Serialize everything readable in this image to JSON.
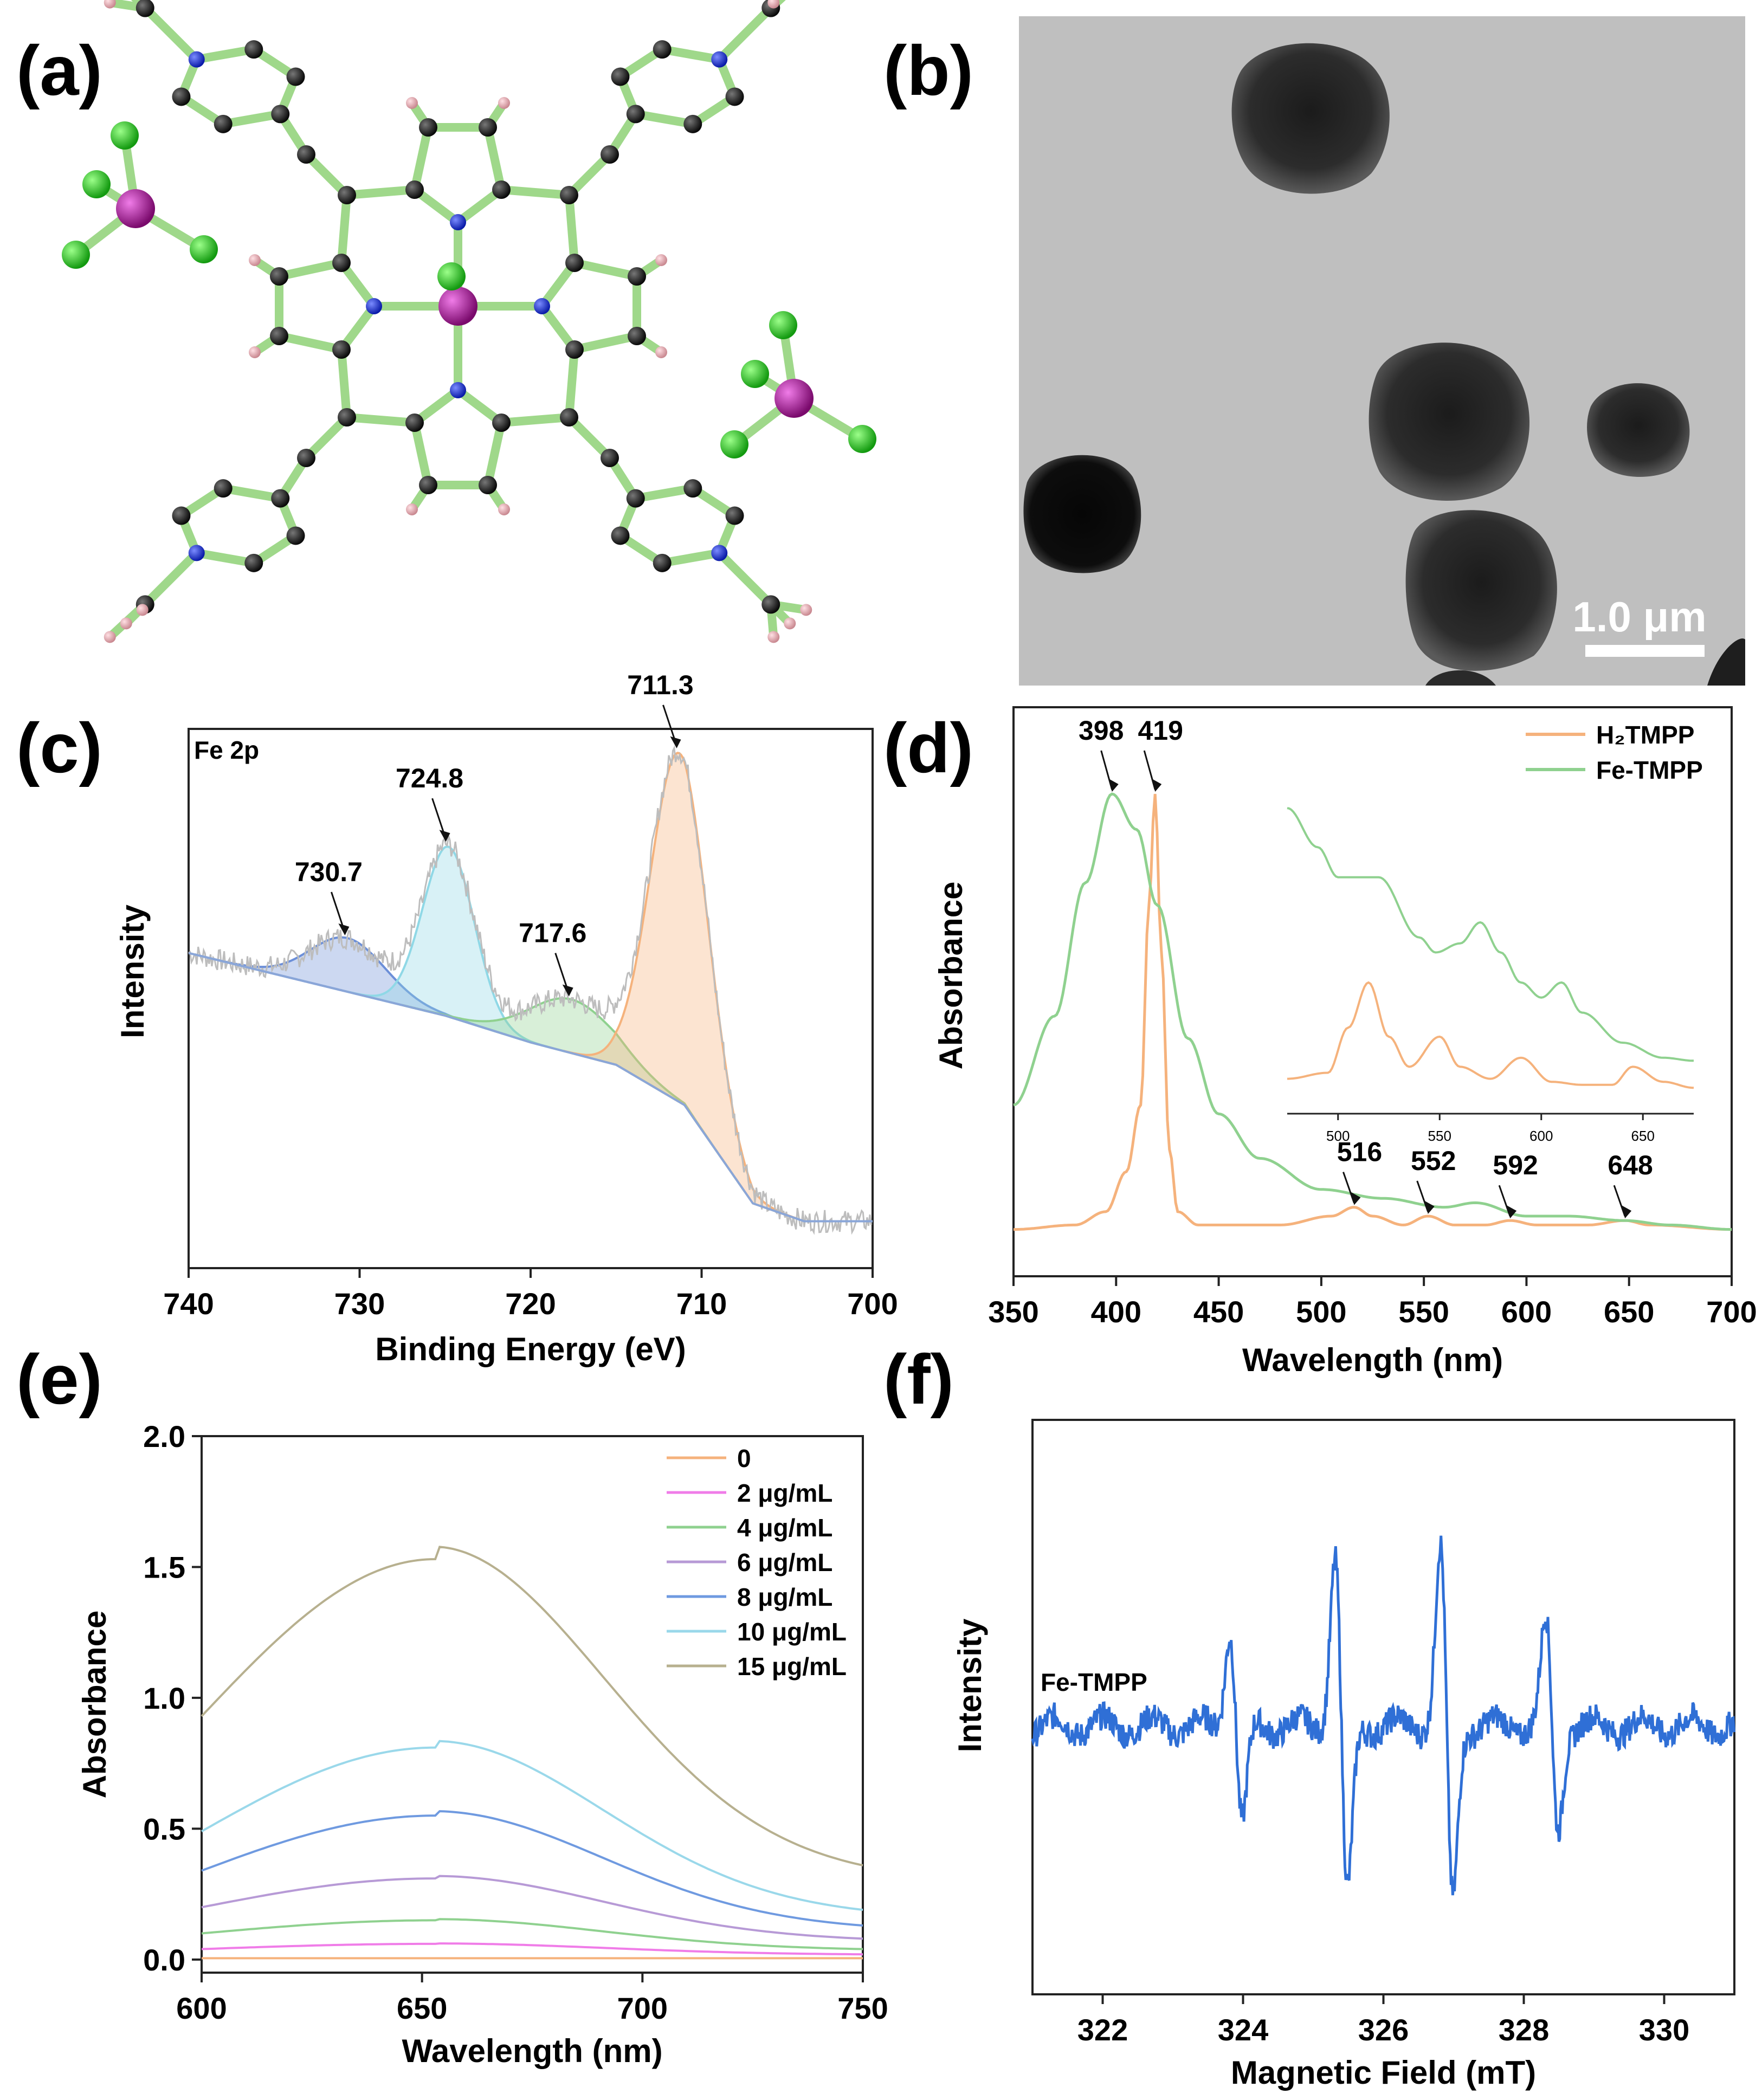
{
  "panels": {
    "a": {
      "label": "(a)"
    },
    "b": {
      "label": "(b)",
      "scale_bar": "1.0 μm"
    },
    "c": {
      "label": "(c)"
    },
    "d": {
      "label": "(d)"
    },
    "e": {
      "label": "(e)"
    },
    "f": {
      "label": "(f)"
    }
  },
  "colors": {
    "orange": "#f5b27c",
    "green": "#8fd18f",
    "blue_epr": "#2f6fd6",
    "molecule_bond": "#9fd88a",
    "carbon": "#111111",
    "nitrogen": "#1a2fd6",
    "iron": "#b0129e",
    "chlorine": "#22c41e",
    "hydrogen": "#e7a9b0"
  },
  "chart_data": [
    {
      "panel": "c",
      "type": "line",
      "title": "Fe 2p",
      "xlabel": "Binding Energy (eV)",
      "ylabel": "Intensity",
      "xlim": [
        740,
        700
      ],
      "xticks": [
        "740",
        "730",
        "720",
        "710",
        "700"
      ],
      "annotations": [
        {
          "text": "730.7",
          "x": 730.7
        },
        {
          "text": "724.8",
          "x": 724.8
        },
        {
          "text": "717.6",
          "x": 717.6
        },
        {
          "text": "711.3",
          "x": 711.3
        }
      ],
      "peaks": [
        {
          "center": 730.7,
          "height": 0.12,
          "width": 2.2,
          "color": "#6c8fd8"
        },
        {
          "center": 724.8,
          "height": 0.38,
          "width": 1.5,
          "color": "#8fd8e6"
        },
        {
          "center": 717.6,
          "height": 0.12,
          "width": 2.5,
          "color": "#8fd18f"
        },
        {
          "center": 711.3,
          "height": 0.78,
          "width": 1.7,
          "color": "#f5b27c"
        }
      ],
      "background": {
        "x": [
          740,
          725,
          720,
          715,
          711,
          707,
          704,
          700
        ],
        "y": [
          0.62,
          0.48,
          0.42,
          0.37,
          0.28,
          0.06,
          0.02,
          0.02
        ]
      }
    },
    {
      "panel": "d",
      "type": "line",
      "xlabel": "Wavelength (nm)",
      "ylabel": "Absorbance",
      "xlim": [
        350,
        700
      ],
      "xticks": [
        "350",
        "400",
        "450",
        "500",
        "550",
        "600",
        "650",
        "700"
      ],
      "series": [
        {
          "name": "H2TMPP",
          "color": "#f5b27c",
          "x": [
            350,
            380,
            395,
            405,
            412,
            416,
            419,
            422,
            426,
            430,
            440,
            480,
            505,
            516,
            525,
            540,
            552,
            565,
            580,
            592,
            605,
            630,
            648,
            660,
            700
          ],
          "y": [
            0.02,
            0.03,
            0.06,
            0.15,
            0.3,
            0.75,
            1.0,
            0.65,
            0.2,
            0.06,
            0.03,
            0.03,
            0.05,
            0.07,
            0.05,
            0.03,
            0.05,
            0.03,
            0.03,
            0.04,
            0.03,
            0.03,
            0.04,
            0.03,
            0.02
          ]
        },
        {
          "name": "Fe-TMPP",
          "color": "#8fd18f",
          "x": [
            350,
            370,
            385,
            398,
            410,
            420,
            435,
            450,
            470,
            500,
            530,
            560,
            575,
            600,
            620,
            648,
            670,
            700
          ],
          "y": [
            0.3,
            0.5,
            0.8,
            1.0,
            0.92,
            0.75,
            0.45,
            0.28,
            0.18,
            0.11,
            0.09,
            0.07,
            0.08,
            0.05,
            0.05,
            0.04,
            0.03,
            0.02
          ]
        }
      ],
      "annotations": [
        {
          "text": "398",
          "x": 398
        },
        {
          "text": "419",
          "x": 419
        },
        {
          "text": "516",
          "x": 516
        },
        {
          "text": "552",
          "x": 552
        },
        {
          "text": "592",
          "x": 592
        },
        {
          "text": "648",
          "x": 648
        }
      ],
      "legend": {
        "position": "top-right",
        "labels": [
          "H₂TMPP",
          "Fe-TMPP"
        ]
      },
      "inset": {
        "xlim": [
          475,
          675
        ],
        "xticks": [
          "500",
          "550",
          "600",
          "650"
        ],
        "series": [
          {
            "name": "Fe-TMPP",
            "color": "#8fd18f",
            "x": [
              475,
              490,
              500,
              520,
              540,
              548,
              560,
              570,
              580,
              590,
              600,
              610,
              620,
              640,
              660,
              675
            ],
            "y": [
              0.98,
              0.85,
              0.75,
              0.75,
              0.55,
              0.5,
              0.53,
              0.6,
              0.5,
              0.4,
              0.35,
              0.4,
              0.3,
              0.2,
              0.15,
              0.14
            ]
          },
          {
            "name": "H2TMPP",
            "color": "#f5b27c",
            "x": [
              475,
              495,
              505,
              515,
              525,
              535,
              550,
              560,
              575,
              590,
              605,
              620,
              635,
              645,
              660,
              675
            ],
            "y": [
              0.08,
              0.1,
              0.25,
              0.4,
              0.22,
              0.12,
              0.22,
              0.12,
              0.08,
              0.15,
              0.07,
              0.06,
              0.06,
              0.12,
              0.07,
              0.05
            ]
          }
        ]
      }
    },
    {
      "panel": "e",
      "type": "line",
      "xlabel": "Wavelength (nm)",
      "ylabel": "Absorbance",
      "xlim": [
        600,
        750
      ],
      "ylim": [
        -0.05,
        2.0
      ],
      "xticks": [
        "600",
        "650",
        "700",
        "750"
      ],
      "yticks": [
        "0.0",
        "0.5",
        "1.0",
        "1.5",
        "2.0"
      ],
      "series": [
        {
          "name": "0",
          "color": "#f5b27c",
          "peak": 0.005,
          "y600": 0.005,
          "y750": 0.005
        },
        {
          "name": "2 μg/mL",
          "color": "#f07ce8",
          "peak": 0.06,
          "y600": 0.04,
          "y750": 0.02
        },
        {
          "name": "4 μg/mL",
          "color": "#8fd18f",
          "peak": 0.15,
          "y600": 0.1,
          "y750": 0.04
        },
        {
          "name": "6 μg/mL",
          "color": "#b79ad6",
          "peak": 0.31,
          "y600": 0.2,
          "y750": 0.08
        },
        {
          "name": "8 μg/mL",
          "color": "#6f9ae0",
          "peak": 0.55,
          "y600": 0.34,
          "y750": 0.13
        },
        {
          "name": "10 μg/mL",
          "color": "#9ad8ea",
          "peak": 0.81,
          "y600": 0.49,
          "y750": 0.19
        },
        {
          "name": "15 μg/mL",
          "color": "#b7b08f",
          "peak": 1.53,
          "y600": 0.93,
          "y750": 0.36
        }
      ],
      "legend": {
        "position": "top-right"
      }
    },
    {
      "panel": "f",
      "type": "line",
      "xlabel": "Magnetic Field (mT)",
      "ylabel": "Intensity",
      "series_label": "Fe-TMPP",
      "xlim": [
        321,
        331
      ],
      "xticks": [
        "322",
        "324",
        "326",
        "328",
        "330"
      ],
      "color": "#2f6fd6",
      "lines": [
        {
          "center": 323.9,
          "amp": 0.8
        },
        {
          "center": 325.4,
          "amp": 1.4
        },
        {
          "center": 326.9,
          "amp": 1.45
        },
        {
          "center": 328.4,
          "amp": 0.85
        }
      ]
    }
  ]
}
